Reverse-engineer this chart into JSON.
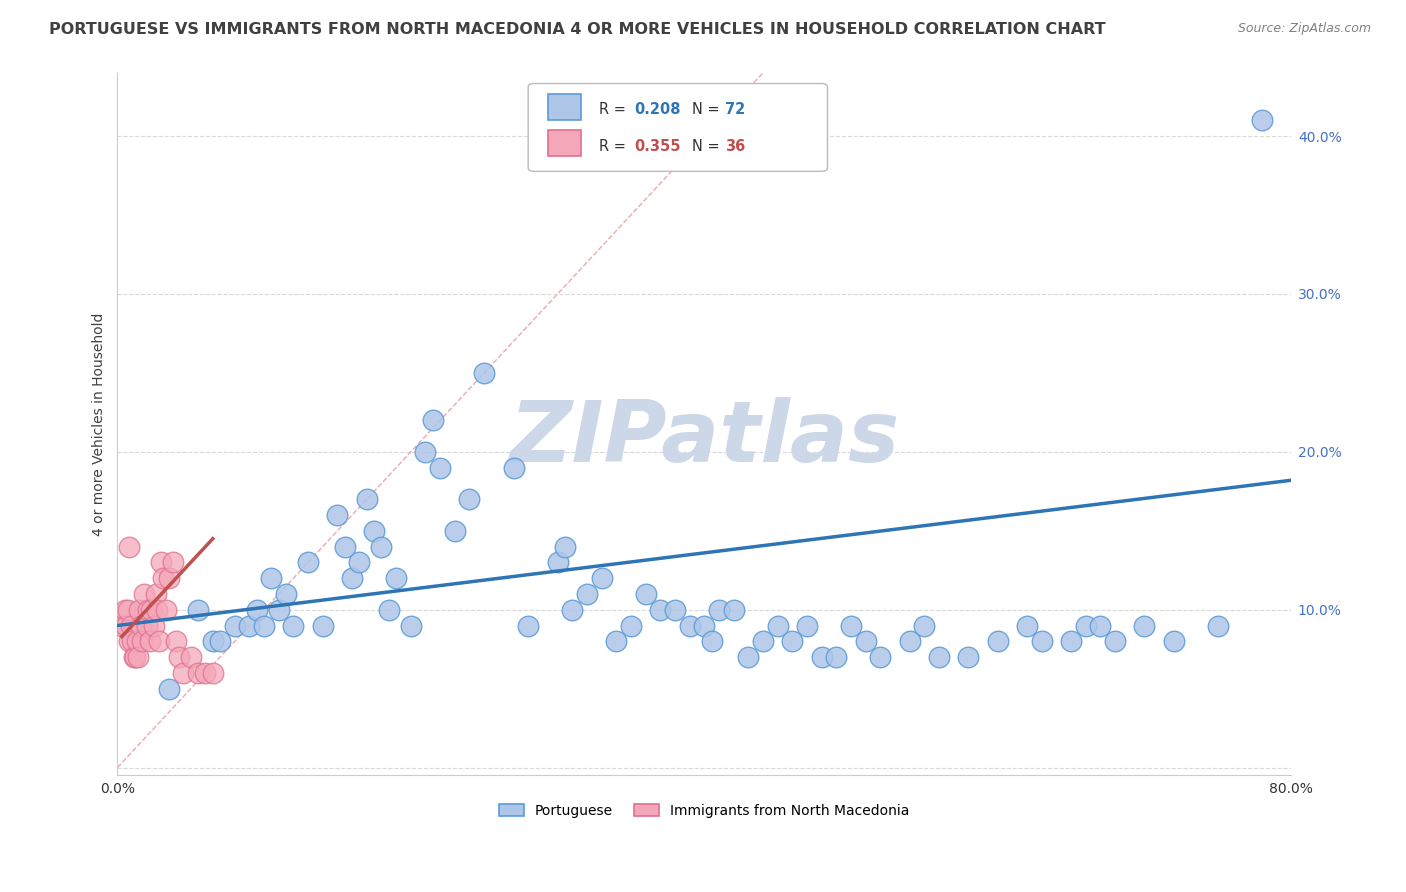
{
  "title": "PORTUGUESE VS IMMIGRANTS FROM NORTH MACEDONIA 4 OR MORE VEHICLES IN HOUSEHOLD CORRELATION CHART",
  "source": "Source: ZipAtlas.com",
  "ylabel": "4 or more Vehicles in Household",
  "xlim": [
    0.0,
    0.8
  ],
  "ylim": [
    -0.005,
    0.44
  ],
  "xtick_positions": [
    0.0,
    0.1,
    0.2,
    0.3,
    0.4,
    0.5,
    0.6,
    0.7,
    0.8
  ],
  "xticklabels": [
    "0.0%",
    "",
    "",
    "",
    "",
    "",
    "",
    "",
    "80.0%"
  ],
  "ytick_positions": [
    0.0,
    0.1,
    0.2,
    0.3,
    0.4
  ],
  "ytick_labels": [
    "",
    "10.0%",
    "20.0%",
    "30.0%",
    "40.0%"
  ],
  "legend_r1": "0.208",
  "legend_n1": "72",
  "legend_r2": "0.355",
  "legend_n2": "36",
  "blue_color": "#aec6e8",
  "blue_edge": "#5b9bd5",
  "pink_color": "#f4a7b9",
  "pink_edge": "#e07090",
  "trendline1_color": "#2e75b6",
  "trendline2_color": "#c0504d",
  "diagonal_color": "#e8a0a8",
  "diagonal_style": "--",
  "watermark_text": "ZIPatlas",
  "watermark_color": "#ccd8e8",
  "background_color": "#ffffff",
  "grid_color": "#d9d9d9",
  "tick_label_color": "#4472c4",
  "title_color": "#404040",
  "source_color": "#808080",
  "ylabel_color": "#404040",
  "port_x": [
    0.035,
    0.055,
    0.065,
    0.07,
    0.08,
    0.09,
    0.095,
    0.1,
    0.105,
    0.11,
    0.115,
    0.12,
    0.13,
    0.14,
    0.15,
    0.155,
    0.16,
    0.165,
    0.17,
    0.175,
    0.18,
    0.185,
    0.19,
    0.2,
    0.21,
    0.215,
    0.22,
    0.23,
    0.24,
    0.25,
    0.27,
    0.28,
    0.3,
    0.305,
    0.31,
    0.32,
    0.33,
    0.34,
    0.35,
    0.36,
    0.37,
    0.38,
    0.39,
    0.4,
    0.405,
    0.41,
    0.42,
    0.43,
    0.44,
    0.45,
    0.46,
    0.47,
    0.48,
    0.49,
    0.5,
    0.51,
    0.52,
    0.54,
    0.55,
    0.56,
    0.58,
    0.6,
    0.62,
    0.63,
    0.65,
    0.66,
    0.67,
    0.68,
    0.7,
    0.72,
    0.75,
    0.78
  ],
  "port_y": [
    0.05,
    0.1,
    0.08,
    0.08,
    0.09,
    0.09,
    0.1,
    0.09,
    0.12,
    0.1,
    0.11,
    0.09,
    0.13,
    0.09,
    0.16,
    0.14,
    0.12,
    0.13,
    0.17,
    0.15,
    0.14,
    0.1,
    0.12,
    0.09,
    0.2,
    0.22,
    0.19,
    0.15,
    0.17,
    0.25,
    0.19,
    0.09,
    0.13,
    0.14,
    0.1,
    0.11,
    0.12,
    0.08,
    0.09,
    0.11,
    0.1,
    0.1,
    0.09,
    0.09,
    0.08,
    0.1,
    0.1,
    0.07,
    0.08,
    0.09,
    0.08,
    0.09,
    0.07,
    0.07,
    0.09,
    0.08,
    0.07,
    0.08,
    0.09,
    0.07,
    0.07,
    0.08,
    0.09,
    0.08,
    0.08,
    0.09,
    0.09,
    0.08,
    0.09,
    0.08,
    0.09,
    0.41
  ],
  "mac_x": [
    0.003,
    0.005,
    0.006,
    0.007,
    0.008,
    0.009,
    0.01,
    0.011,
    0.012,
    0.013,
    0.014,
    0.015,
    0.016,
    0.017,
    0.018,
    0.02,
    0.021,
    0.022,
    0.023,
    0.025,
    0.026,
    0.027,
    0.028,
    0.03,
    0.031,
    0.033,
    0.035,
    0.038,
    0.04,
    0.042,
    0.045,
    0.05,
    0.055,
    0.06,
    0.065,
    0.008
  ],
  "mac_y": [
    0.09,
    0.1,
    0.09,
    0.1,
    0.08,
    0.09,
    0.08,
    0.07,
    0.07,
    0.08,
    0.07,
    0.1,
    0.09,
    0.08,
    0.11,
    0.09,
    0.1,
    0.08,
    0.1,
    0.09,
    0.11,
    0.1,
    0.08,
    0.13,
    0.12,
    0.1,
    0.12,
    0.13,
    0.08,
    0.07,
    0.06,
    0.07,
    0.06,
    0.06,
    0.06,
    0.14
  ],
  "trendline1_x": [
    0.0,
    0.8
  ],
  "trendline1_y": [
    0.09,
    0.182
  ],
  "trendline2_x": [
    0.003,
    0.065
  ],
  "trendline2_y": [
    0.083,
    0.145
  ]
}
